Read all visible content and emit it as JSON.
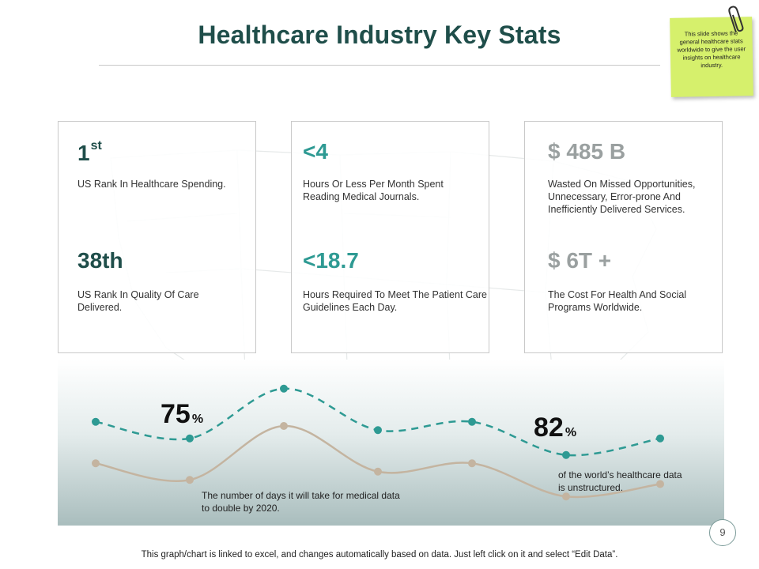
{
  "title": "Healthcare Industry Key Stats",
  "sticky_note": "This slide shows the general healthcare stats worldwide to give the user insights on healthcare industry.",
  "cards": [
    {
      "stat1": {
        "value": "1",
        "suffix": "st",
        "label": "US Rank In Healthcare Spending."
      },
      "stat2": {
        "value": "38th",
        "label": "US Rank In Quality Of Care Delivered."
      }
    },
    {
      "stat1": {
        "value": "<4",
        "label": "Hours Or Less Per Month Spent Reading Medical Journals."
      },
      "stat2": {
        "value": "<18.7",
        "label": "Hours Required To Meet The Patient Care Guidelines Each Day."
      }
    },
    {
      "stat1": {
        "value": "$ 485 B",
        "label": "Wasted On Missed Opportunities, Unnecessary, Error-prone And Inefficiently Delivered Services."
      },
      "stat2": {
        "value": "$ 6T +",
        "label": "The Cost For Health And Social Programs Worldwide."
      }
    }
  ],
  "callouts": {
    "left": {
      "value": "75",
      "unit": "%",
      "text": "The number of days it will take for medical data to double by 2020."
    },
    "right": {
      "value": "82",
      "unit": "%",
      "text": "of the world’s healthcare data is unstructured."
    }
  },
  "page_number": "9",
  "footer": "This graph/chart is linked to excel, and changes automatically based on data. Just left click on it and select “Edit Data”.",
  "colors": {
    "title": "#1f4e4a",
    "teal": "#2e9a93",
    "gray": "#9aa0a0",
    "tan_line": "#c4b4a0",
    "sticky": "#d6f06c"
  },
  "chart_data": {
    "type": "line",
    "x": [
      1,
      2,
      3,
      4,
      5,
      6,
      7
    ],
    "series": [
      {
        "values": [
          4.0,
          3.6,
          4.8,
          3.8,
          4.0,
          3.2,
          3.6
        ],
        "style": "dashed",
        "color": "#2e9a93"
      },
      {
        "values": [
          3.0,
          2.6,
          3.9,
          2.8,
          3.0,
          2.2,
          2.5
        ],
        "style": "solid",
        "color": "#c4b4a0"
      }
    ],
    "ylim": [
      1.5,
      5.5
    ],
    "grid": false,
    "legend": "none"
  }
}
